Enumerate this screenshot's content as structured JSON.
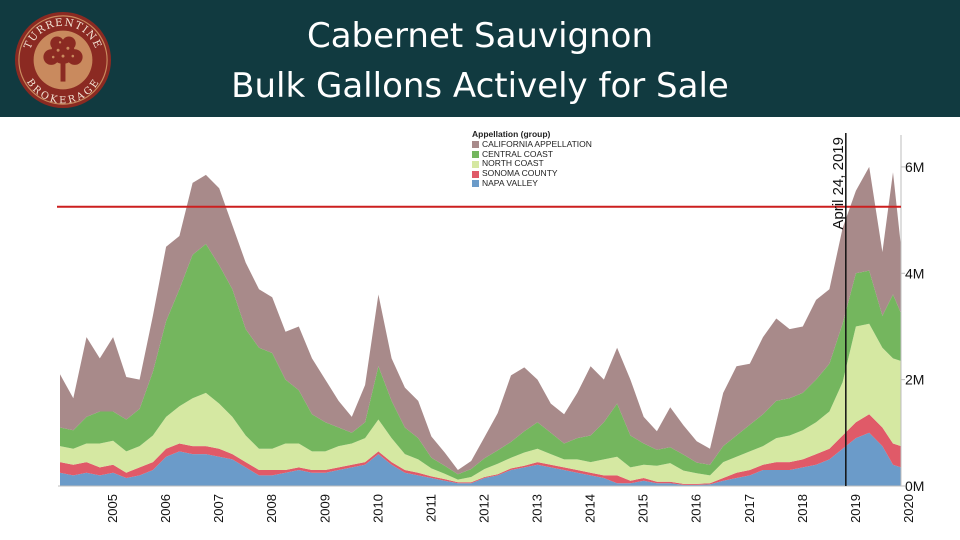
{
  "title": {
    "line1": "Cabernet Sauvignon",
    "line2": "Bulk Gallons Actively for Sale"
  },
  "logo": {
    "text_top": "TURRENTINE",
    "text_bottom": "BROKERAGE",
    "colors": {
      "ring": "#8b2a22",
      "accent": "#c98a5e"
    }
  },
  "chart_data": {
    "type": "area",
    "stacked": true,
    "legend_title": "Appellation (group)",
    "legend_position": "top-center",
    "x_ticks": [
      "2005",
      "2006",
      "2007",
      "2008",
      "2009",
      "2010",
      "2011",
      "2012",
      "2013",
      "2014",
      "2015",
      "2016",
      "2017",
      "2018",
      "2019",
      "2020"
    ],
    "y_ticks": [
      "0M",
      "2M",
      "4M",
      "6M"
    ],
    "ylim": [
      0,
      6.6
    ],
    "xlim": [
      2004.5,
      2020.35
    ],
    "y_axis_position": "right",
    "grid": false,
    "x": [
      2004.5,
      2004.75,
      2005.0,
      2005.25,
      2005.5,
      2005.75,
      2006.0,
      2006.25,
      2006.5,
      2006.75,
      2007.0,
      2007.25,
      2007.5,
      2007.75,
      2008.0,
      2008.25,
      2008.5,
      2008.75,
      2009.0,
      2009.25,
      2009.5,
      2009.75,
      2010.0,
      2010.25,
      2010.5,
      2010.75,
      2011.0,
      2011.25,
      2011.5,
      2011.75,
      2012.0,
      2012.25,
      2012.5,
      2012.75,
      2013.0,
      2013.25,
      2013.5,
      2013.75,
      2014.0,
      2014.25,
      2014.5,
      2014.75,
      2015.0,
      2015.25,
      2015.5,
      2015.75,
      2016.0,
      2016.25,
      2016.5,
      2016.75,
      2017.0,
      2017.25,
      2017.5,
      2017.75,
      2018.0,
      2018.25,
      2018.5,
      2018.75,
      2019.0,
      2019.25,
      2019.5,
      2019.75,
      2020.0,
      2020.2,
      2020.35
    ],
    "series": [
      {
        "name": "NAPA VALLEY",
        "color": "#6b9bc9",
        "values": [
          0.25,
          0.2,
          0.25,
          0.2,
          0.25,
          0.15,
          0.2,
          0.3,
          0.55,
          0.65,
          0.6,
          0.6,
          0.55,
          0.5,
          0.35,
          0.2,
          0.2,
          0.25,
          0.3,
          0.25,
          0.25,
          0.3,
          0.35,
          0.4,
          0.6,
          0.4,
          0.25,
          0.2,
          0.15,
          0.1,
          0.05,
          0.05,
          0.15,
          0.2,
          0.3,
          0.35,
          0.4,
          0.35,
          0.3,
          0.25,
          0.2,
          0.15,
          0.05,
          0.05,
          0.1,
          0.05,
          0.05,
          0.02,
          0.02,
          0.03,
          0.1,
          0.15,
          0.2,
          0.3,
          0.3,
          0.3,
          0.35,
          0.4,
          0.5,
          0.7,
          0.9,
          1.0,
          0.75,
          0.4,
          0.35
        ]
      },
      {
        "name": "SONOMA COUNTY",
        "color": "#e05a68",
        "values": [
          0.2,
          0.2,
          0.2,
          0.15,
          0.15,
          0.1,
          0.15,
          0.15,
          0.15,
          0.15,
          0.15,
          0.15,
          0.15,
          0.1,
          0.1,
          0.1,
          0.1,
          0.05,
          0.05,
          0.05,
          0.05,
          0.05,
          0.05,
          0.05,
          0.05,
          0.05,
          0.05,
          0.05,
          0.03,
          0.03,
          0.02,
          0.02,
          0.02,
          0.02,
          0.03,
          0.03,
          0.05,
          0.05,
          0.05,
          0.05,
          0.05,
          0.05,
          0.15,
          0.05,
          0.05,
          0.03,
          0.03,
          0.02,
          0.02,
          0.02,
          0.05,
          0.1,
          0.1,
          0.1,
          0.15,
          0.15,
          0.15,
          0.2,
          0.2,
          0.25,
          0.3,
          0.35,
          0.35,
          0.4,
          0.4
        ]
      },
      {
        "name": "NORTH COAST",
        "color": "#d5e8a2",
        "values": [
          0.3,
          0.3,
          0.35,
          0.45,
          0.45,
          0.4,
          0.4,
          0.5,
          0.6,
          0.7,
          0.9,
          1.0,
          0.85,
          0.7,
          0.5,
          0.4,
          0.4,
          0.5,
          0.45,
          0.35,
          0.35,
          0.4,
          0.4,
          0.45,
          0.6,
          0.45,
          0.3,
          0.25,
          0.15,
          0.1,
          0.05,
          0.1,
          0.15,
          0.2,
          0.2,
          0.25,
          0.25,
          0.2,
          0.15,
          0.2,
          0.2,
          0.3,
          0.35,
          0.25,
          0.25,
          0.3,
          0.35,
          0.25,
          0.2,
          0.15,
          0.3,
          0.3,
          0.35,
          0.35,
          0.45,
          0.5,
          0.55,
          0.6,
          0.7,
          1.0,
          1.8,
          1.7,
          1.5,
          1.6,
          1.6
        ]
      },
      {
        "name": "CENTRAL COAST",
        "color": "#74b65e",
        "values": [
          0.35,
          0.35,
          0.5,
          0.6,
          0.55,
          0.6,
          0.7,
          1.2,
          1.8,
          2.2,
          2.7,
          2.8,
          2.6,
          2.4,
          2.0,
          1.9,
          1.8,
          1.2,
          1.0,
          0.7,
          0.55,
          0.35,
          0.2,
          0.3,
          1.0,
          0.7,
          0.5,
          0.4,
          0.2,
          0.15,
          0.1,
          0.15,
          0.2,
          0.25,
          0.3,
          0.4,
          0.5,
          0.4,
          0.3,
          0.4,
          0.5,
          0.7,
          1.0,
          0.6,
          0.4,
          0.3,
          0.3,
          0.3,
          0.2,
          0.2,
          0.3,
          0.4,
          0.5,
          0.6,
          0.7,
          0.7,
          0.7,
          0.8,
          0.9,
          1.1,
          1.0,
          1.0,
          0.6,
          1.2,
          0.9
        ]
      },
      {
        "name": "CALIFORNIA APPELLATION",
        "color": "#a88a8a",
        "values": [
          1.0,
          0.6,
          1.5,
          1.0,
          1.4,
          0.8,
          0.55,
          1.05,
          1.4,
          1.0,
          1.35,
          1.3,
          1.45,
          1.2,
          1.25,
          1.1,
          1.05,
          0.9,
          1.2,
          1.05,
          0.8,
          0.5,
          0.3,
          0.7,
          1.35,
          0.8,
          0.75,
          0.7,
          0.4,
          0.25,
          0.08,
          0.15,
          0.4,
          0.7,
          1.25,
          1.2,
          0.8,
          0.55,
          0.55,
          0.85,
          1.3,
          0.8,
          1.05,
          1.05,
          0.5,
          0.35,
          0.75,
          0.55,
          0.4,
          0.3,
          1.0,
          1.3,
          1.15,
          1.45,
          1.55,
          1.3,
          1.25,
          1.5,
          1.4,
          1.8,
          1.55,
          1.95,
          1.2,
          2.3,
          1.25
        ]
      }
    ],
    "reference_line": {
      "y": 5.25,
      "color": "#cc1f1f"
    },
    "annotation": {
      "label": "April 24, 2019",
      "x": 2019.31,
      "color": "#111111"
    }
  }
}
